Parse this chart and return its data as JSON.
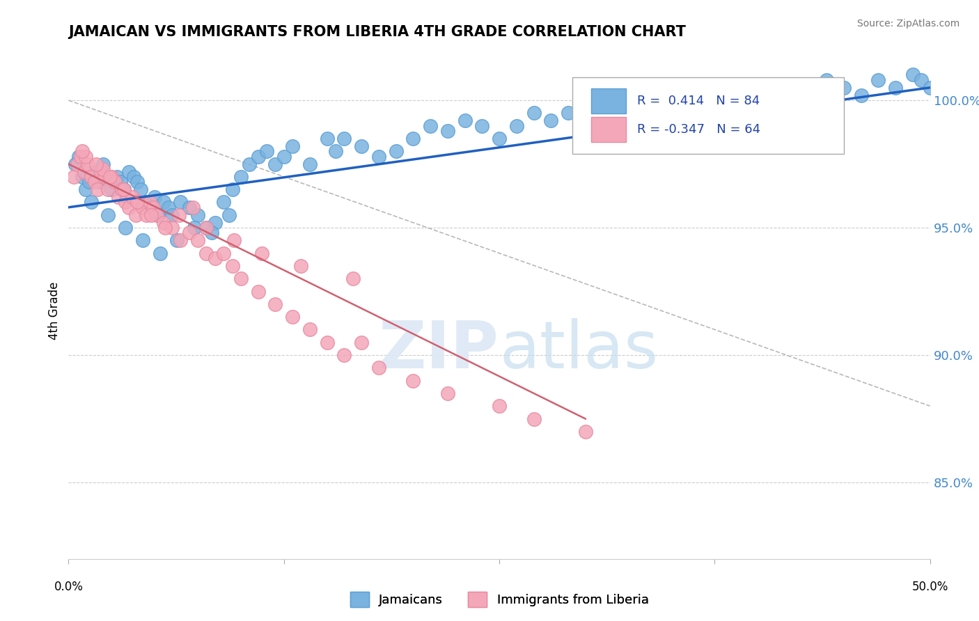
{
  "title": "JAMAICAN VS IMMIGRANTS FROM LIBERIA 4TH GRADE CORRELATION CHART",
  "source_text": "Source: ZipAtlas.com",
  "ylabel": "4th Grade",
  "watermark_zip": "ZIP",
  "watermark_atlas": "atlas",
  "xlim": [
    0.0,
    50.0
  ],
  "ylim": [
    82.0,
    101.5
  ],
  "yticks": [
    85.0,
    90.0,
    95.0,
    100.0
  ],
  "ytick_labels": [
    "85.0%",
    "90.0%",
    "95.0%",
    "100.0%"
  ],
  "blue_color": "#7ab3e0",
  "pink_color": "#f4a7b9",
  "blue_edge": "#5a9fd4",
  "pink_edge": "#e88aa0",
  "trend_blue": "#2060c0",
  "trend_pink": "#d06070",
  "dashed_color": "#b8b8b8",
  "grid_color": "#cccccc",
  "blue_scatter_x": [
    0.4,
    0.6,
    0.8,
    1.0,
    1.2,
    1.5,
    1.8,
    2.0,
    2.2,
    2.5,
    2.8,
    3.0,
    3.2,
    3.5,
    3.8,
    4.0,
    4.2,
    4.5,
    4.8,
    5.0,
    5.2,
    5.5,
    5.8,
    6.0,
    6.5,
    7.0,
    7.5,
    8.0,
    8.5,
    9.0,
    9.5,
    10.0,
    10.5,
    11.0,
    11.5,
    12.0,
    12.5,
    13.0,
    14.0,
    15.0,
    15.5,
    16.0,
    17.0,
    18.0,
    19.0,
    20.0,
    21.0,
    22.0,
    23.0,
    24.0,
    25.0,
    26.0,
    27.0,
    28.0,
    29.0,
    30.0,
    31.0,
    32.0,
    33.0,
    34.0,
    35.0,
    36.0,
    37.0,
    38.0,
    40.0,
    41.0,
    42.0,
    43.0,
    44.0,
    45.0,
    46.0,
    47.0,
    48.0,
    49.0,
    49.5,
    50.0,
    1.3,
    2.3,
    3.3,
    4.3,
    5.3,
    6.3,
    7.3,
    8.3,
    9.3
  ],
  "blue_scatter_y": [
    97.5,
    97.8,
    97.0,
    96.5,
    96.8,
    97.2,
    96.8,
    97.5,
    97.0,
    96.5,
    97.0,
    96.8,
    96.5,
    97.2,
    97.0,
    96.8,
    96.5,
    96.0,
    95.8,
    96.2,
    95.5,
    96.0,
    95.8,
    95.5,
    96.0,
    95.8,
    95.5,
    95.0,
    95.2,
    96.0,
    96.5,
    97.0,
    97.5,
    97.8,
    98.0,
    97.5,
    97.8,
    98.2,
    97.5,
    98.5,
    98.0,
    98.5,
    98.2,
    97.8,
    98.0,
    98.5,
    99.0,
    98.8,
    99.2,
    99.0,
    98.5,
    99.0,
    99.5,
    99.2,
    99.5,
    99.0,
    99.5,
    100.0,
    99.8,
    100.2,
    100.0,
    100.5,
    99.8,
    100.2,
    100.5,
    100.0,
    100.5,
    100.2,
    100.8,
    100.5,
    100.2,
    100.8,
    100.5,
    101.0,
    100.8,
    100.5,
    96.0,
    95.5,
    95.0,
    94.5,
    94.0,
    94.5,
    95.0,
    94.8,
    95.5
  ],
  "pink_scatter_x": [
    0.3,
    0.5,
    0.7,
    0.9,
    1.1,
    1.3,
    1.5,
    1.7,
    1.9,
    2.1,
    2.3,
    2.5,
    2.7,
    2.9,
    3.1,
    3.3,
    3.5,
    3.7,
    3.9,
    4.1,
    4.3,
    4.5,
    4.7,
    4.9,
    5.1,
    5.5,
    6.0,
    6.5,
    7.0,
    7.5,
    8.0,
    8.5,
    9.0,
    9.5,
    10.0,
    11.0,
    12.0,
    13.0,
    14.0,
    15.0,
    16.0,
    17.0,
    18.0,
    20.0,
    22.0,
    25.0,
    27.0,
    30.0,
    1.0,
    2.0,
    0.8,
    1.6,
    2.4,
    3.2,
    4.0,
    4.8,
    5.6,
    6.4,
    7.2,
    8.0,
    9.6,
    11.2,
    13.5,
    16.5
  ],
  "pink_scatter_y": [
    97.0,
    97.5,
    97.8,
    97.2,
    97.5,
    97.0,
    96.8,
    96.5,
    97.2,
    97.0,
    96.5,
    97.0,
    96.8,
    96.2,
    96.5,
    96.0,
    95.8,
    96.2,
    95.5,
    96.0,
    95.8,
    95.5,
    96.0,
    95.8,
    95.5,
    95.2,
    95.0,
    94.5,
    94.8,
    94.5,
    94.0,
    93.8,
    94.0,
    93.5,
    93.0,
    92.5,
    92.0,
    91.5,
    91.0,
    90.5,
    90.0,
    90.5,
    89.5,
    89.0,
    88.5,
    88.0,
    87.5,
    87.0,
    97.8,
    97.3,
    98.0,
    97.5,
    97.0,
    96.5,
    96.0,
    95.5,
    95.0,
    95.5,
    95.8,
    95.0,
    94.5,
    94.0,
    93.5,
    93.0
  ],
  "blue_trend_x": [
    0.0,
    50.0
  ],
  "blue_trend_y": [
    95.8,
    100.5
  ],
  "pink_trend_x": [
    0.0,
    30.0
  ],
  "pink_trend_y": [
    97.5,
    87.5
  ],
  "dashed_line_x": [
    0.0,
    50.0
  ],
  "dashed_line_y": [
    100.0,
    88.0
  ]
}
